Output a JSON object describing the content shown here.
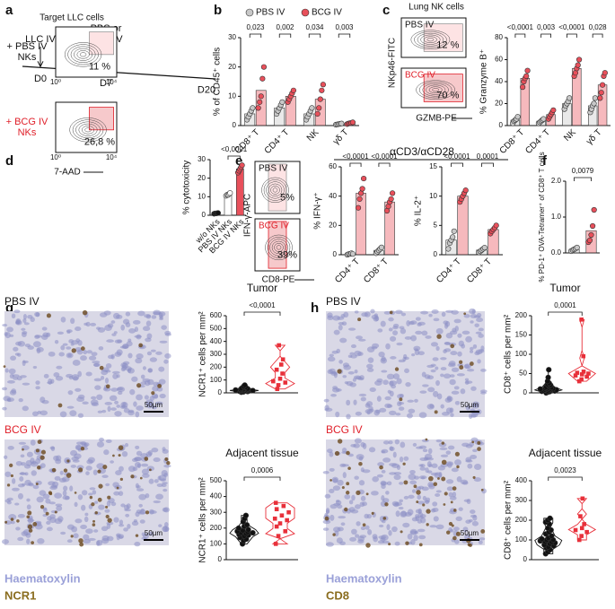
{
  "panel_labels": [
    "a",
    "b",
    "c",
    "d",
    "e",
    "f",
    "g",
    "h"
  ],
  "timeline": {
    "events": [
      {
        "label": [
          "LLC IV"
        ],
        "day": "D0"
      },
      {
        "label": [
          "PBS or",
          "BCG IV"
        ],
        "day": "D7"
      },
      {
        "day": "D20"
      }
    ]
  },
  "flow": [
    {
      "title": "Lung NK cells",
      "plots": [
        {
          "name": [
            "PBS IV"
          ],
          "percent": "12 %"
        },
        {
          "name": [
            "BCG IV"
          ],
          "percent": "70 %"
        }
      ],
      "x_label": "GZMB-PE",
      "y_label": "NKp46-FITC"
    },
    {
      "title": "Target LLC cells",
      "plots": [
        {
          "name": [
            "+ PBS IV",
            "NKs"
          ],
          "percent": "11 %"
        },
        {
          "name": [
            "+ BCG IV",
            "NKs"
          ],
          "percent": "26,8 %"
        }
      ],
      "x_label": "7-AAD",
      "tick_labels": [
        "10⁰",
        "10⁴"
      ]
    },
    {
      "plots": [
        {
          "name": [
            "PBS IV"
          ],
          "percent": "5%"
        },
        {
          "name": [
            "BCG IV"
          ],
          "percent": "39%"
        }
      ],
      "x_label": "CD8-PE",
      "y_label": "IFN-γ-APC"
    }
  ],
  "micrographs": [
    {
      "rows": [
        "PBS IV",
        "BCG IV"
      ],
      "scale_bar": "50µm",
      "stains": [
        "Haematoxylin",
        "NCR1"
      ]
    },
    {
      "rows": [
        "PBS IV",
        "BCG IV"
      ],
      "scale_bar": "50µm",
      "stains": [
        "Haematoxylin",
        "CD8"
      ]
    }
  ],
  "chart_data": [
    {
      "type": "bar",
      "y_label": "% of CD45⁺ cells",
      "categories": [
        "CD8⁺ T",
        "CD4⁺ T",
        "NK",
        "γδ T"
      ],
      "legend": true,
      "series": [
        {
          "name": "PBS IV",
          "color": "#c8c8c8",
          "values": [
            4,
            6,
            4,
            0.5
          ],
          "points": [
            [
              2,
              3,
              4,
              5,
              6
            ],
            [
              4,
              5,
              6,
              7,
              8
            ],
            [
              2,
              3,
              4,
              5,
              6
            ],
            [
              0.3,
              0.4,
              0.5,
              0.6,
              0.7
            ]
          ]
        },
        {
          "name": "BCG IV",
          "color": "#e8505b",
          "values": [
            12,
            10,
            9,
            0.8
          ],
          "points": [
            [
              6,
              8,
              10,
              16,
              20
            ],
            [
              8,
              9,
              10,
              11,
              12
            ],
            [
              4,
              6,
              9,
              12,
              14
            ],
            [
              0.5,
              0.7,
              0.8,
              0.9,
              1.1
            ]
          ]
        }
      ],
      "ylim": [
        0,
        30
      ],
      "yticks": [
        0,
        10,
        20,
        30
      ],
      "p_values": [
        "0,023",
        "0,002",
        "0,034",
        "0,003"
      ]
    },
    {
      "type": "bar",
      "y_label": "% Granzyme B⁺",
      "categories": [
        "CD8⁺ T",
        "CD4⁺ T",
        "NK",
        "γδ T"
      ],
      "series": [
        {
          "color": "#c8c8c8",
          "values": [
            5,
            4,
            20,
            18
          ],
          "points": [
            [
              2,
              4,
              5,
              6,
              8
            ],
            [
              2,
              3,
              4,
              5,
              6
            ],
            [
              15,
              18,
              20,
              22,
              25
            ],
            [
              12,
              15,
              18,
              20,
              25
            ]
          ]
        },
        {
          "color": "#e8505b",
          "values": [
            43,
            10,
            52,
            37
          ],
          "points": [
            [
              35,
              40,
              43,
              45,
              50
            ],
            [
              6,
              8,
              10,
              12,
              14
            ],
            [
              45,
              48,
              52,
              55,
              60
            ],
            [
              25,
              30,
              37,
              45,
              48
            ]
          ]
        }
      ],
      "ylim": [
        0,
        80
      ],
      "yticks": [
        0,
        20,
        40,
        60,
        80
      ],
      "p_values": [
        "<0,0001",
        "0,003",
        "<0,0001",
        "0,028"
      ]
    },
    {
      "type": "bar",
      "y_label": "% cytotoxicity",
      "categories": [
        "w/o NKs",
        "PBS IV NKs",
        "BCG IV NKs"
      ],
      "values": [
        1,
        11,
        25
      ],
      "colors": [
        "#111111",
        "#ffffff",
        "#e8505b"
      ],
      "points": [
        [
          0.8,
          1,
          1,
          1.1,
          1.2
        ],
        [
          10.5,
          11,
          11,
          11.5,
          12
        ],
        [
          23,
          24,
          25,
          26,
          27
        ]
      ],
      "ylim": [
        0,
        30
      ],
      "yticks": [
        0,
        10,
        20,
        30
      ],
      "p_values": [
        "<0,0001"
      ]
    },
    {
      "type": "bar",
      "header": "αCD3/αCD28",
      "y_label": "% IFN-γ⁺",
      "categories": [
        "CD4⁺ T",
        "CD8⁺ T"
      ],
      "series": [
        {
          "color": "#c8c8c8",
          "values": [
            0.5,
            3
          ],
          "points": [
            [
              0,
              0.5,
              0.5,
              1,
              0.5
            ],
            [
              1,
              2,
              3,
              4,
              5
            ]
          ]
        },
        {
          "color": "#e8505b",
          "values": [
            42,
            36
          ],
          "points": [
            [
              32,
              38,
              42,
              45,
              52
            ],
            [
              30,
              33,
              36,
              38,
              42
            ]
          ]
        }
      ],
      "ylim": [
        0,
        60
      ],
      "yticks": [
        0,
        20,
        40,
        60
      ],
      "p_values": [
        "<0,0001",
        "<0,0001"
      ]
    },
    {
      "type": "bar",
      "y_label": "% IL-2⁺",
      "categories": [
        "CD4⁺ T",
        "CD8⁺ T"
      ],
      "series": [
        {
          "color": "#c8c8c8",
          "values": [
            2.5,
            0.8
          ],
          "points": [
            [
              1,
              2,
              2.5,
              3,
              4
            ],
            [
              0.4,
              0.6,
              0.8,
              1,
              1.2
            ]
          ]
        },
        {
          "color": "#e8505b",
          "values": [
            10,
            4.3
          ],
          "points": [
            [
              9,
              9.5,
              10,
              10.5,
              11
            ],
            [
              3.6,
              4,
              4.3,
              4.6,
              5
            ]
          ]
        }
      ],
      "ylim": [
        0,
        15
      ],
      "yticks": [
        0,
        5,
        10,
        15
      ],
      "p_values": [
        "<0,0001",
        "0,0001"
      ]
    },
    {
      "type": "bar",
      "y_label": "% PD-1⁺ OVA-Tetramer⁺ of CD8⁺ T cells",
      "categories": [
        null,
        null
      ],
      "values": [
        0.1,
        0.62
      ],
      "colors": [
        "#c8c8c8",
        "#e8505b"
      ],
      "points": [
        [
          0.05,
          0.08,
          0.1,
          0.12,
          0.15
        ],
        [
          0.3,
          0.35,
          0.5,
          0.75,
          1.2
        ]
      ],
      "ylim": [
        0,
        2
      ],
      "yticks": [
        {
          "value": 0,
          "label": "0.0"
        },
        {
          "value": 1,
          "label": "1.0"
        },
        {
          "value": 2,
          "label": "2.0"
        }
      ],
      "p_values": [
        "0,0079"
      ]
    },
    {
      "type": "violin",
      "title": "Tumor",
      "y_label": "NCR1⁺ cells per mm²",
      "categories": [
        null,
        null
      ],
      "colors": [
        "#111111",
        "#e8303a"
      ],
      "points": [
        [
          5,
          8,
          10,
          12,
          14,
          15,
          16,
          18,
          18,
          20,
          20,
          22,
          24,
          25,
          27,
          30,
          32,
          35,
          40,
          45,
          50,
          60
        ],
        [
          30,
          60,
          80,
          90,
          110,
          150,
          180,
          220,
          260,
          370
        ]
      ],
      "ylim": [
        0,
        600
      ],
      "yticks": [
        0,
        100,
        200,
        300,
        400,
        500,
        600
      ],
      "p_values": [
        "<0,0001"
      ]
    },
    {
      "type": "violin",
      "title": "Adjacent tissue",
      "y_label": "NCR1⁺ cells per mm²",
      "categories": [
        null,
        null
      ],
      "colors": [
        "#111111",
        "#e8303a"
      ],
      "points": [
        [
          100,
          120,
          130,
          140,
          150,
          155,
          160,
          165,
          170,
          170,
          175,
          180,
          185,
          190,
          200,
          210,
          220,
          240,
          260,
          280
        ],
        [
          100,
          150,
          180,
          210,
          230,
          250,
          260,
          280,
          300,
          320,
          340,
          360
        ]
      ],
      "ylim": [
        0,
        500
      ],
      "yticks": [
        0,
        100,
        200,
        300,
        400,
        500
      ],
      "p_values": [
        "0,0006"
      ]
    },
    {
      "type": "violin",
      "title": "Tumor",
      "y_label": "CD8⁺ cells per mm²",
      "categories": [
        null,
        null
      ],
      "colors": [
        "#111111",
        "#e8303a"
      ],
      "points": [
        [
          0,
          2,
          3,
          4,
          5,
          5,
          6,
          7,
          8,
          8,
          9,
          10,
          10,
          11,
          12,
          13,
          14,
          15,
          18,
          20,
          22,
          25,
          30,
          40,
          60
        ],
        [
          30,
          35,
          42,
          45,
          48,
          50,
          52,
          55,
          95,
          190
        ]
      ],
      "ylim": [
        0,
        200
      ],
      "yticks": [
        0,
        50,
        100,
        150,
        200
      ],
      "p_values": [
        "0,0001"
      ]
    },
    {
      "type": "violin",
      "title": "Adjacent tissue",
      "y_label": "CD8⁺ cells per mm²",
      "categories": [
        null,
        null
      ],
      "colors": [
        "#111111",
        "#e8303a"
      ],
      "points": [
        [
          30,
          40,
          50,
          60,
          65,
          70,
          75,
          80,
          85,
          90,
          90,
          95,
          100,
          100,
          105,
          110,
          120,
          130,
          140,
          150,
          160,
          180,
          190,
          200,
          210
        ],
        [
          100,
          120,
          140,
          150,
          160,
          180,
          220,
          310
        ]
      ],
      "ylim": [
        0,
        400
      ],
      "yticks": [
        0,
        100,
        200,
        300,
        400
      ],
      "p_values": [
        "0,0023"
      ]
    }
  ]
}
